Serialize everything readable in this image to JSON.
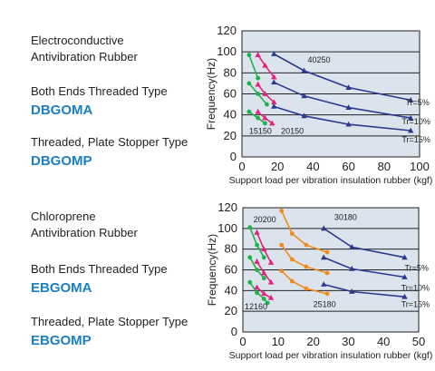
{
  "sections": [
    {
      "material": "Electroconductive\nAntivibration Rubber",
      "type1": "Both Ends Threaded Type",
      "code1": "DBGOMA",
      "type2": "Threaded, Plate Stopper Type",
      "code2": "DBGOMP"
    },
    {
      "material": "Chloroprene\nAntivibration Rubber",
      "type1": "Both Ends Threaded Type",
      "code1": "EBGOMA",
      "type2": "Threaded, Plate Stopper Type",
      "code2": "EBGOMP"
    }
  ],
  "colors": {
    "plot_bg": "#dbe4ec",
    "grid": "#222222",
    "code_text": "#1a7fc4",
    "green": "#1bb34a",
    "pink": "#e5207f",
    "orange": "#f08a1e",
    "navy": "#2b3a8f"
  },
  "chart_data": [
    {
      "type": "line",
      "xlabel": "Support load per vibration insulation rubber (kgf)",
      "ylabel": "Frequency(Hz)",
      "xlim": [
        0,
        100
      ],
      "ylim": [
        0,
        120
      ],
      "xticks": [
        "0",
        "20",
        "40",
        "60",
        "80",
        "100"
      ],
      "yticks": [
        "0",
        "20",
        "40",
        "60",
        "80",
        "100",
        "120"
      ],
      "grid": "horizontal",
      "series": [
        {
          "color": "green",
          "marker": "circle",
          "points": [
            [
              4,
              97
            ],
            [
              9,
              75
            ]
          ]
        },
        {
          "color": "green",
          "marker": "circle",
          "points": [
            [
              4,
              70
            ],
            [
              9,
              60
            ],
            [
              14,
              50
            ]
          ]
        },
        {
          "color": "green",
          "marker": "circle",
          "points": [
            [
              4,
              43
            ],
            [
              9,
              37
            ],
            [
              13,
              32
            ]
          ]
        },
        {
          "color": "pink",
          "marker": "triangle",
          "points": [
            [
              9,
              97
            ],
            [
              13,
              87
            ],
            [
              18,
              76
            ]
          ]
        },
        {
          "color": "pink",
          "marker": "triangle",
          "points": [
            [
              9,
              69
            ],
            [
              13,
              60
            ],
            [
              18,
              52
            ]
          ]
        },
        {
          "color": "pink",
          "marker": "triangle",
          "points": [
            [
              9,
              43
            ],
            [
              13,
              37
            ],
            [
              17,
              32
            ]
          ]
        },
        {
          "color": "navy",
          "marker": "triangle",
          "points": [
            [
              18,
              98
            ],
            [
              35,
              82
            ],
            [
              60,
              66
            ],
            [
              95,
              54
            ]
          ]
        },
        {
          "color": "navy",
          "marker": "triangle",
          "points": [
            [
              18,
              71
            ],
            [
              35,
              58
            ],
            [
              60,
              47
            ],
            [
              95,
              37
            ]
          ]
        },
        {
          "color": "navy",
          "marker": "triangle",
          "points": [
            [
              18,
              48
            ],
            [
              35,
              39
            ],
            [
              60,
              31
            ],
            [
              95,
              25
            ]
          ]
        }
      ],
      "annotations": [
        {
          "text": "40250",
          "x": 37,
          "y": 90
        },
        {
          "text": "15150",
          "x": 4,
          "y": 22
        },
        {
          "text": "20150",
          "x": 22,
          "y": 22
        },
        {
          "text": "Tr=5%",
          "x": 92,
          "y": 49
        },
        {
          "text": "Tr=10%",
          "x": 90,
          "y": 31
        },
        {
          "text": "Tr=15%",
          "x": 90,
          "y": 14
        }
      ]
    },
    {
      "type": "line",
      "xlabel": "Support load per vibration insulation rubber (kgf)",
      "ylabel": "Frequency(Hz)",
      "xlim": [
        0,
        50
      ],
      "ylim": [
        0,
        120
      ],
      "xticks": [
        "0",
        "10",
        "20",
        "30",
        "40",
        "50"
      ],
      "yticks": [
        "0",
        "20",
        "40",
        "60",
        "80",
        "100",
        "120"
      ],
      "grid": "horizontal",
      "series": [
        {
          "color": "green",
          "marker": "circle",
          "points": [
            [
              2,
              101
            ],
            [
              4,
              84
            ],
            [
              6,
              72
            ]
          ]
        },
        {
          "color": "green",
          "marker": "circle",
          "points": [
            [
              2,
              72
            ],
            [
              4,
              60
            ],
            [
              6,
              52
            ]
          ]
        },
        {
          "color": "green",
          "marker": "circle",
          "points": [
            [
              2,
              48
            ],
            [
              4,
              38
            ],
            [
              6,
              32
            ],
            [
              7,
              28
            ]
          ]
        },
        {
          "color": "pink",
          "marker": "triangle",
          "points": [
            [
              4,
              96
            ],
            [
              6,
              80
            ],
            [
              8,
              67
            ]
          ]
        },
        {
          "color": "pink",
          "marker": "triangle",
          "points": [
            [
              4,
              68
            ],
            [
              6,
              57
            ],
            [
              8,
              48
            ]
          ]
        },
        {
          "color": "pink",
          "marker": "triangle",
          "points": [
            [
              4,
              43
            ],
            [
              6,
              37
            ],
            [
              8,
              33
            ]
          ]
        },
        {
          "color": "orange",
          "marker": "circle",
          "points": [
            [
              11,
              117
            ],
            [
              14,
              95
            ],
            [
              18,
              84
            ],
            [
              24,
              77
            ]
          ]
        },
        {
          "color": "orange",
          "marker": "circle",
          "points": [
            [
              11,
              84
            ],
            [
              14,
              70
            ],
            [
              18,
              63
            ],
            [
              24,
              57
            ]
          ]
        },
        {
          "color": "orange",
          "marker": "circle",
          "points": [
            [
              11,
              59
            ],
            [
              14,
              49
            ],
            [
              18,
              42
            ],
            [
              24,
              37
            ]
          ]
        },
        {
          "color": "navy",
          "marker": "triangle",
          "points": [
            [
              23,
              100
            ],
            [
              31,
              82
            ],
            [
              46,
              72
            ]
          ]
        },
        {
          "color": "navy",
          "marker": "triangle",
          "points": [
            [
              23,
              72
            ],
            [
              31,
              61
            ],
            [
              46,
              53
            ]
          ]
        },
        {
          "color": "navy",
          "marker": "triangle",
          "points": [
            [
              23,
              46
            ],
            [
              31,
              39
            ],
            [
              46,
              34
            ]
          ]
        }
      ],
      "annotations": [
        {
          "text": "20200",
          "x": 3,
          "y": 106
        },
        {
          "text": "30180",
          "x": 26,
          "y": 108
        },
        {
          "text": "12160",
          "x": 0.5,
          "y": 22
        },
        {
          "text": "25180",
          "x": 20,
          "y": 24
        },
        {
          "text": "Tr=5%",
          "x": 46,
          "y": 59
        },
        {
          "text": "Tr=10%",
          "x": 45,
          "y": 40
        },
        {
          "text": "Tr=15%",
          "x": 45,
          "y": 24
        }
      ]
    }
  ]
}
